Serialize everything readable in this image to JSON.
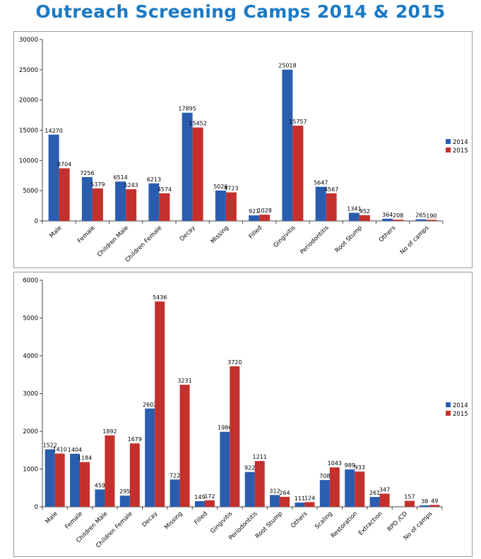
{
  "page": {
    "title": "Outreach Screening Camps 2014 & 2015"
  },
  "colors": {
    "series_2014": "#2a5db0",
    "series_2015": "#c4302b"
  },
  "chart_data": [
    {
      "type": "bar",
      "categories": [
        "Male",
        "Female",
        "Children Male",
        "Children Female",
        "Decay",
        "Missing",
        "Filled",
        "Gingivitis",
        "Periodontitis",
        "Root Stump",
        "Others",
        "No of camps"
      ],
      "series": [
        {
          "name": "2014",
          "values": [
            14270,
            7256,
            6514,
            6213,
            17895,
            5026,
            921,
            25018,
            5647,
            1341,
            364,
            265
          ]
        },
        {
          "name": "2015",
          "values": [
            8704,
            5379,
            5243,
            4574,
            15452,
            4723,
            1028,
            15757,
            4567,
            952,
            208,
            190
          ]
        }
      ],
      "ylim": [
        0,
        30000
      ],
      "yticks": [
        0,
        5000,
        10000,
        15000,
        20000,
        25000,
        30000
      ],
      "legend_position": "right",
      "data_labels": true,
      "grid": false
    },
    {
      "type": "bar",
      "categories": [
        "Male",
        "Female",
        "Children Male",
        "Children Female",
        "Decay",
        "Missing",
        "Filled",
        "Gingivitis",
        "Periodontitis",
        "Root Stump",
        "Others",
        "Scaling",
        "Restoration",
        "Extraction",
        "RPD /CD",
        "No of camps"
      ],
      "series": [
        {
          "name": "2014",
          "values": [
            1522,
            1404,
            459,
            295,
            2602,
            722,
            149,
            1986,
            922,
            312,
            111,
            708,
            989,
            261,
            null,
            38
          ]
        },
        {
          "name": "2015",
          "values": [
            1410,
            1184,
            1892,
            1679,
            5436,
            3231,
            172,
            3720,
            1211,
            264,
            124,
            1043,
            933,
            347,
            157,
            49
          ]
        }
      ],
      "ylim": [
        0,
        6000
      ],
      "yticks": [
        0,
        1000,
        2000,
        3000,
        4000,
        5000,
        6000
      ],
      "legend_position": "right",
      "data_labels": true,
      "grid": false
    }
  ]
}
